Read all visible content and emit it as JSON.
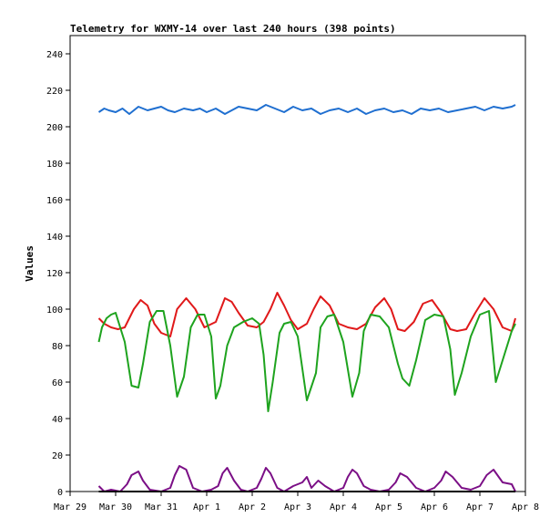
{
  "chart_data": {
    "type": "line",
    "title": "Telemetry for WXMY-14 over last 240 hours (398 points)",
    "xlabel": "",
    "ylabel": "Values",
    "x_tick_labels": [
      "Mar 29",
      "Mar 30",
      "Mar 31",
      "Apr 1",
      "Apr 2",
      "Apr 3",
      "Apr 4",
      "Apr 5",
      "Apr 6",
      "Apr 7",
      "Apr 8"
    ],
    "xlim_days": [
      0,
      10
    ],
    "ylim": [
      0,
      250
    ],
    "y_ticks": [
      0,
      20,
      40,
      60,
      80,
      100,
      120,
      140,
      160,
      180,
      200,
      220,
      240
    ],
    "grid": false,
    "legend": "none",
    "colors": {
      "blue": "#1f6fd0",
      "red": "#e0191a",
      "green": "#1ea31e",
      "purple": "#7b0f86",
      "black": "#000000"
    },
    "series": [
      {
        "color": "blue",
        "x": [
          0.63,
          0.75,
          0.85,
          1.0,
          1.15,
          1.3,
          1.5,
          1.7,
          1.85,
          2.0,
          2.15,
          2.3,
          2.5,
          2.7,
          2.85,
          3.0,
          3.2,
          3.4,
          3.55,
          3.7,
          3.9,
          4.1,
          4.3,
          4.5,
          4.7,
          4.9,
          5.1,
          5.3,
          5.5,
          5.7,
          5.9,
          6.1,
          6.3,
          6.5,
          6.7,
          6.9,
          7.1,
          7.3,
          7.5,
          7.7,
          7.9,
          8.1,
          8.3,
          8.5,
          8.7,
          8.9,
          9.1,
          9.3,
          9.5,
          9.7,
          9.78
        ],
        "y": [
          208,
          210,
          209,
          208,
          210,
          207,
          211,
          209,
          210,
          211,
          209,
          208,
          210,
          209,
          210,
          208,
          210,
          207,
          209,
          211,
          210,
          209,
          212,
          210,
          208,
          211,
          209,
          210,
          207,
          209,
          210,
          208,
          210,
          207,
          209,
          210,
          208,
          209,
          207,
          210,
          209,
          210,
          208,
          209,
          210,
          211,
          209,
          211,
          210,
          211,
          212
        ]
      },
      {
        "color": "red",
        "x": [
          0.63,
          0.75,
          0.9,
          1.05,
          1.2,
          1.4,
          1.55,
          1.7,
          1.85,
          2.0,
          2.2,
          2.35,
          2.55,
          2.75,
          2.95,
          3.2,
          3.4,
          3.55,
          3.7,
          3.9,
          4.1,
          4.25,
          4.4,
          4.55,
          4.7,
          4.85,
          5.0,
          5.2,
          5.35,
          5.5,
          5.7,
          5.9,
          6.1,
          6.3,
          6.5,
          6.7,
          6.9,
          7.05,
          7.2,
          7.35,
          7.55,
          7.75,
          7.95,
          8.15,
          8.35,
          8.5,
          8.7,
          8.9,
          9.1,
          9.3,
          9.5,
          9.7,
          9.78
        ],
        "y": [
          95,
          92,
          90,
          89,
          90,
          100,
          105,
          102,
          92,
          87,
          85,
          100,
          106,
          100,
          90,
          93,
          106,
          104,
          98,
          91,
          90,
          93,
          100,
          109,
          102,
          94,
          89,
          92,
          100,
          107,
          102,
          92,
          90,
          89,
          92,
          101,
          106,
          100,
          89,
          88,
          93,
          103,
          105,
          98,
          89,
          88,
          89,
          98,
          106,
          100,
          90,
          88,
          95
        ]
      },
      {
        "color": "green",
        "x": [
          0.63,
          0.7,
          0.8,
          0.9,
          1.0,
          1.2,
          1.35,
          1.5,
          1.6,
          1.75,
          1.9,
          2.05,
          2.2,
          2.35,
          2.5,
          2.65,
          2.8,
          2.95,
          3.1,
          3.2,
          3.3,
          3.45,
          3.6,
          3.8,
          4.0,
          4.15,
          4.25,
          4.35,
          4.45,
          4.6,
          4.7,
          4.85,
          5.0,
          5.2,
          5.4,
          5.5,
          5.65,
          5.8,
          6.0,
          6.2,
          6.35,
          6.45,
          6.6,
          6.8,
          7.0,
          7.2,
          7.3,
          7.45,
          7.6,
          7.8,
          8.0,
          8.2,
          8.35,
          8.45,
          8.6,
          8.8,
          9.0,
          9.2,
          9.35,
          9.5,
          9.7,
          9.78
        ],
        "y": [
          82,
          90,
          95,
          97,
          98,
          82,
          58,
          57,
          70,
          93,
          99,
          99,
          80,
          52,
          63,
          90,
          97,
          97,
          85,
          51,
          58,
          80,
          90,
          93,
          95,
          92,
          75,
          44,
          60,
          87,
          92,
          93,
          85,
          50,
          65,
          90,
          96,
          97,
          82,
          52,
          65,
          88,
          97,
          96,
          90,
          70,
          62,
          58,
          72,
          94,
          97,
          96,
          78,
          53,
          65,
          85,
          97,
          99,
          60,
          72,
          88,
          92
        ]
      },
      {
        "color": "purple",
        "x": [
          0.63,
          0.75,
          0.9,
          1.1,
          1.25,
          1.35,
          1.5,
          1.6,
          1.75,
          2.0,
          2.2,
          2.3,
          2.4,
          2.55,
          2.7,
          2.9,
          3.1,
          3.25,
          3.35,
          3.45,
          3.6,
          3.75,
          3.9,
          4.1,
          4.2,
          4.3,
          4.4,
          4.55,
          4.7,
          4.9,
          5.1,
          5.2,
          5.3,
          5.45,
          5.6,
          5.8,
          6.0,
          6.1,
          6.2,
          6.3,
          6.45,
          6.6,
          6.8,
          7.0,
          7.15,
          7.25,
          7.4,
          7.6,
          7.8,
          8.0,
          8.15,
          8.25,
          8.4,
          8.6,
          8.8,
          9.0,
          9.15,
          9.3,
          9.5,
          9.7,
          9.78
        ],
        "y": [
          3,
          0,
          1,
          0,
          4,
          9,
          11,
          6,
          1,
          0,
          2,
          9,
          14,
          12,
          2,
          0,
          1,
          3,
          10,
          13,
          6,
          1,
          0,
          2,
          7,
          13,
          10,
          2,
          0,
          3,
          5,
          8,
          2,
          6,
          3,
          0,
          2,
          8,
          12,
          10,
          3,
          1,
          0,
          1,
          5,
          10,
          8,
          2,
          0,
          2,
          6,
          11,
          8,
          2,
          1,
          3,
          9,
          12,
          5,
          4,
          0
        ]
      },
      {
        "color": "black",
        "x": [
          0.63,
          9.78
        ],
        "y": [
          0,
          0
        ]
      }
    ]
  }
}
